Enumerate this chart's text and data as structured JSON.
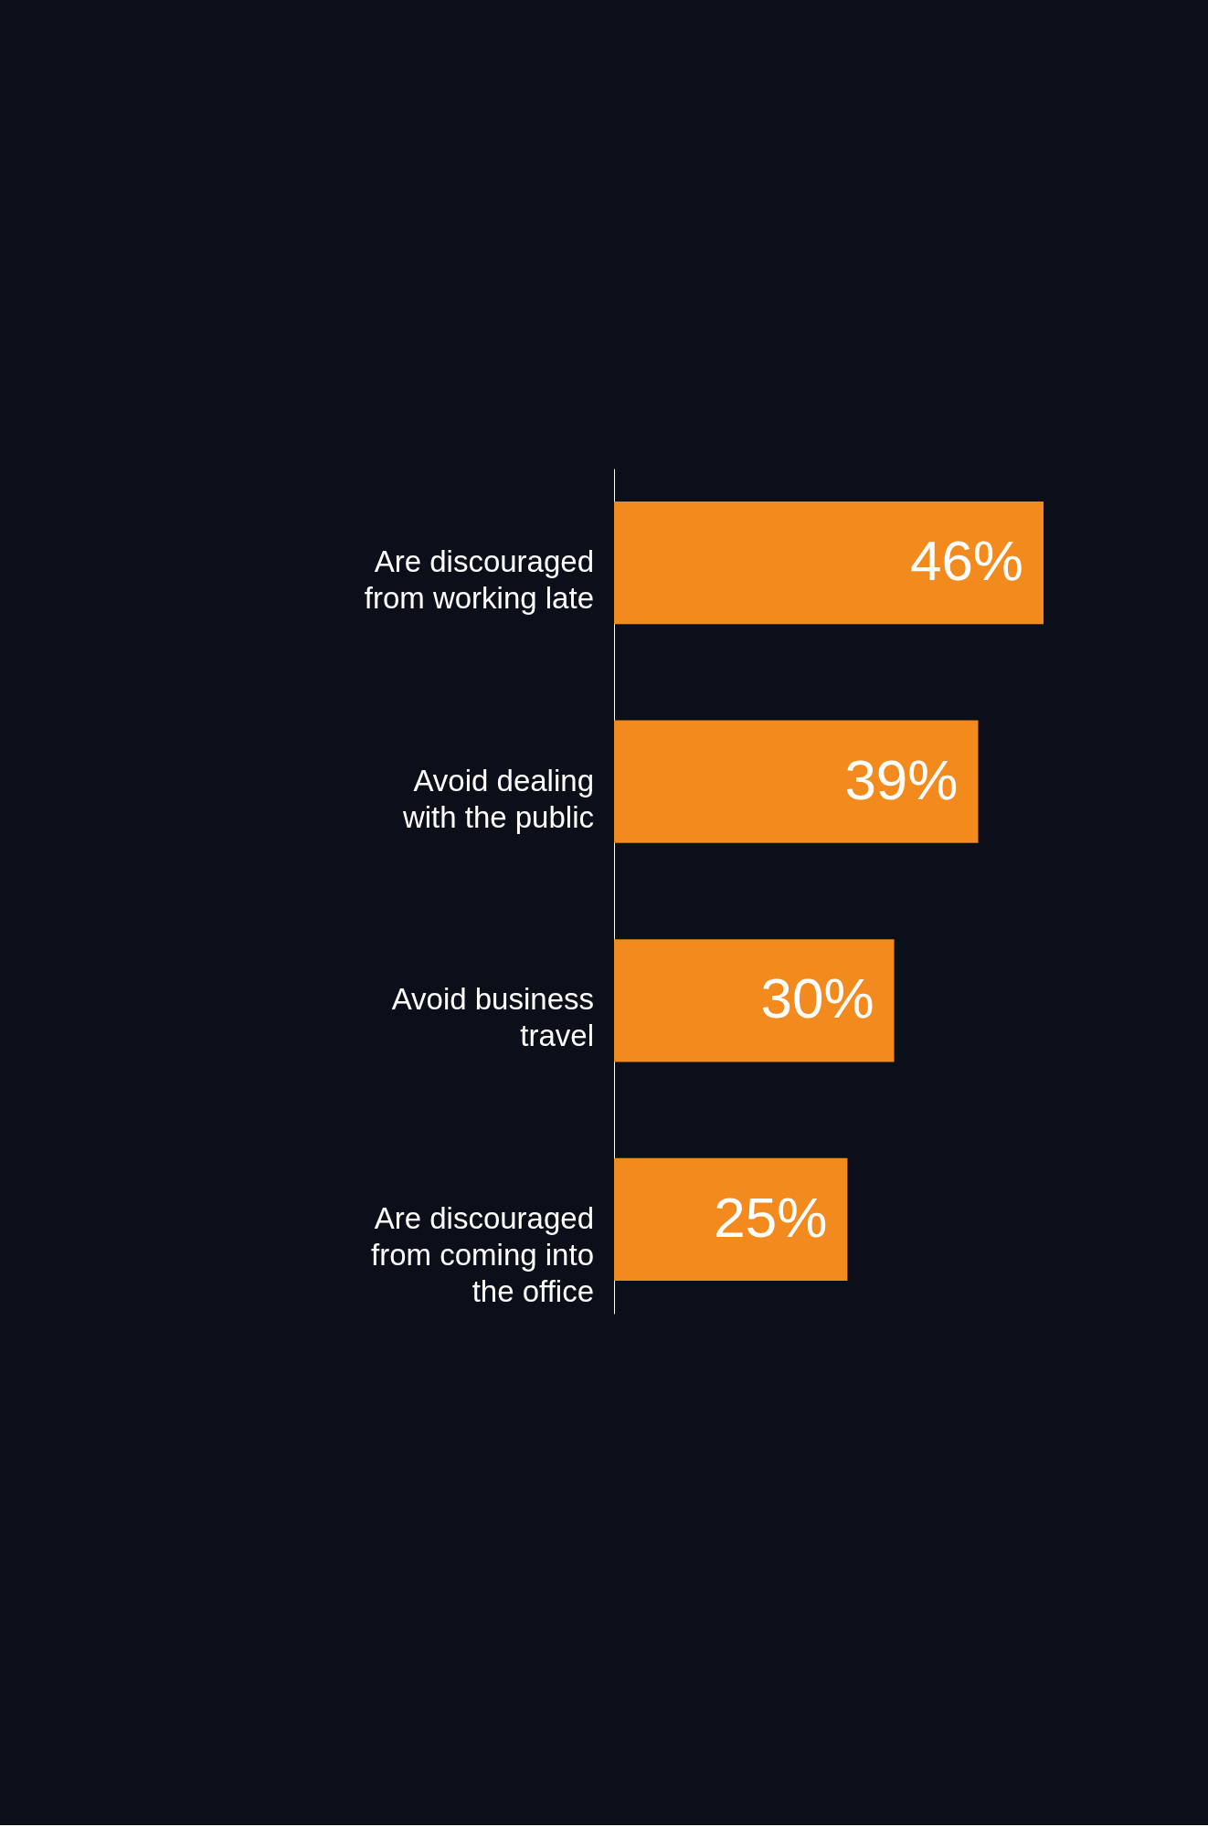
{
  "chart_data": {
    "type": "bar",
    "orientation": "horizontal",
    "categories": [
      "Are discouraged from working late",
      "Avoid dealing with the public",
      "Avoid business travel",
      "Are discouraged from coming into the office"
    ],
    "values": [
      46,
      39,
      30,
      25
    ],
    "color": "#f28a1e",
    "value_labels": [
      "46%",
      "39%",
      "30%",
      "25%"
    ]
  }
}
